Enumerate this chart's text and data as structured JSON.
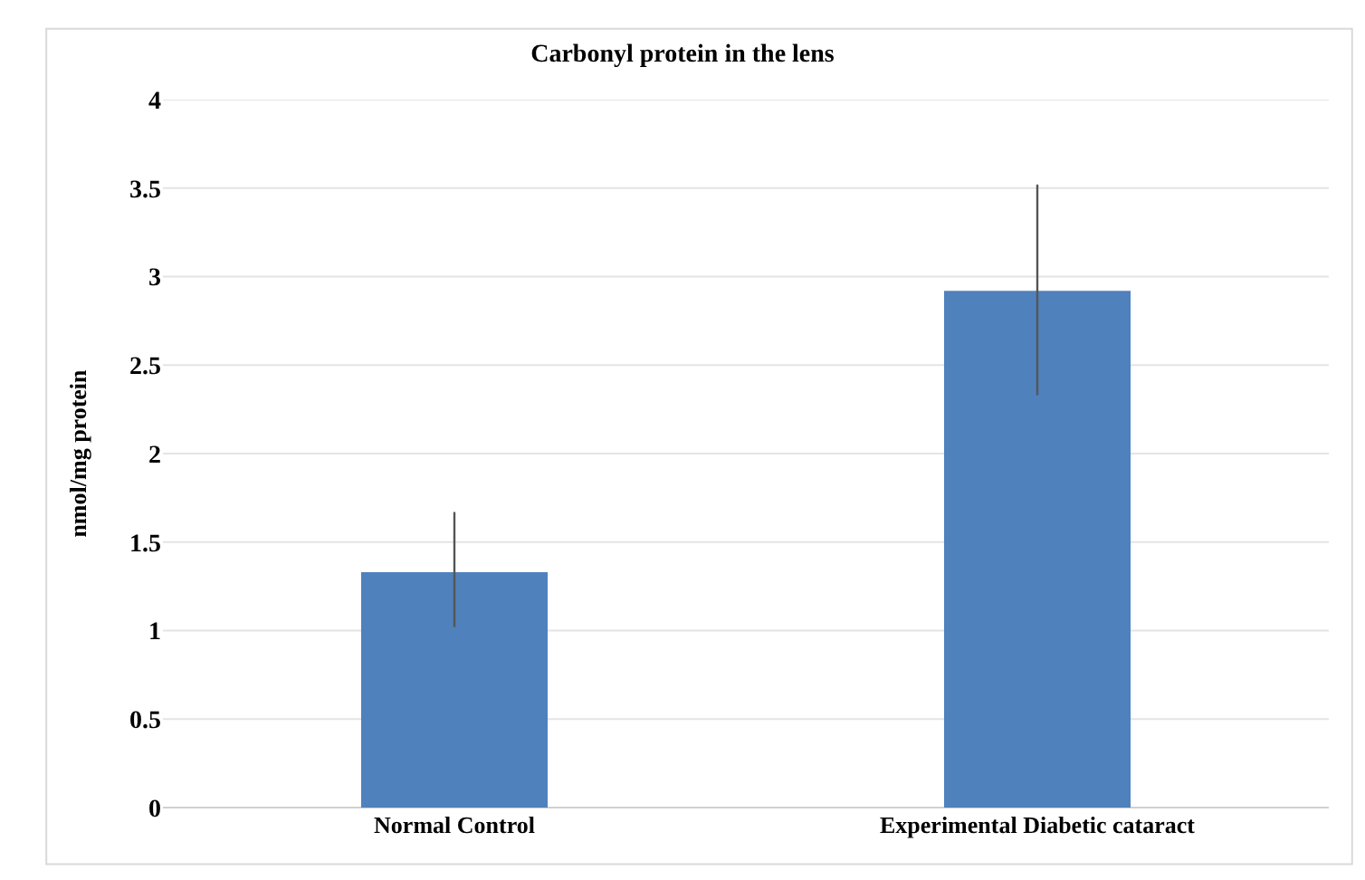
{
  "chart_data": {
    "type": "bar",
    "title": "Carbonyl protein in the lens",
    "ylabel": "nmol/mg protein",
    "categories": [
      "Normal Control",
      "Experimental Diabetic cataract"
    ],
    "values": [
      1.33,
      2.92
    ],
    "errors": [
      [
        1.02,
        1.67
      ],
      [
        2.33,
        3.52
      ]
    ],
    "color": "#4f81bd",
    "ylim": [
      0,
      4
    ],
    "yticks": [
      0,
      {
        "value": 0.5,
        "label": "0.5"
      },
      1,
      {
        "value": 1.5,
        "label": "1.5"
      },
      2,
      {
        "value": 2.5,
        "label": "2.5"
      },
      3,
      {
        "value": 3.5,
        "label": "3.5"
      },
      4
    ],
    "grid": "y"
  }
}
